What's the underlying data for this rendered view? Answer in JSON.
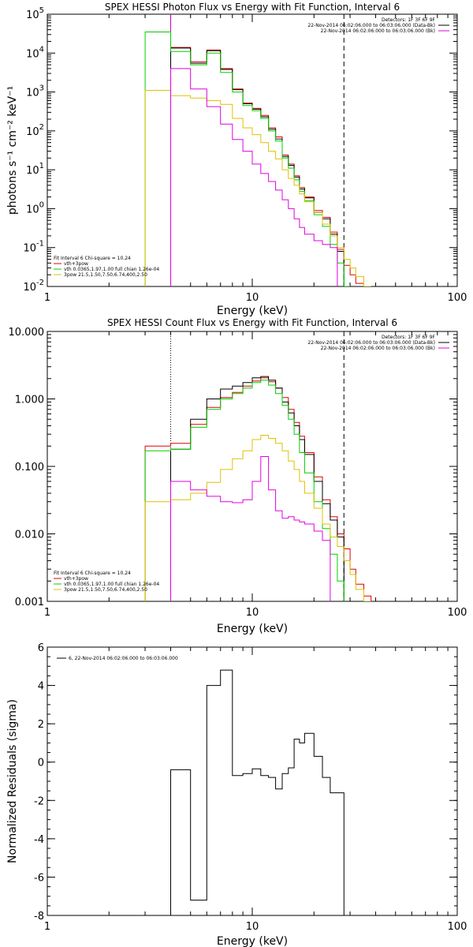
{
  "page": {
    "background": "#ffffff"
  },
  "chart_data": [
    {
      "type": "line",
      "title": "SPEX HESSI Photon Flux vs Energy with Fit Function, Interval 6",
      "xlabel": "Energy (keV)",
      "ylabel": "photons s⁻¹ cm⁻² keV⁻¹",
      "xscale": "log",
      "yscale": "log",
      "xlim": [
        1,
        100
      ],
      "ylim": [
        0.01,
        100000
      ],
      "x_ticks": [
        {
          "v": 1,
          "label": "1"
        },
        {
          "v": 10,
          "label": "10"
        },
        {
          "v": 100,
          "label": "100"
        }
      ],
      "y_ticks": [
        {
          "v": 0.01,
          "base": "10",
          "exp": "-2"
        },
        {
          "v": 0.1,
          "base": "10",
          "exp": "-1"
        },
        {
          "v": 1,
          "base": "10",
          "exp": "0"
        },
        {
          "v": 10,
          "base": "10",
          "exp": "1"
        },
        {
          "v": 100,
          "base": "10",
          "exp": "2"
        },
        {
          "v": 1000,
          "base": "10",
          "exp": "3"
        },
        {
          "v": 10000,
          "base": "10",
          "exp": "4"
        },
        {
          "v": 100000,
          "base": "10",
          "exp": "5"
        }
      ],
      "edges": [
        3,
        4,
        5,
        6,
        7,
        8,
        9,
        10,
        11,
        12,
        13,
        14,
        15,
        16,
        17,
        18,
        20,
        22,
        24,
        26,
        28,
        30,
        32,
        35,
        38
      ],
      "series": [
        {
          "name": "vth+3pow",
          "color": "#e00000",
          "values": [
            null,
            14000,
            6000,
            12000,
            4000,
            1200,
            520,
            380,
            250,
            120,
            70,
            24,
            14,
            7,
            3.5,
            2,
            0.9,
            0.6,
            0.25,
            0.09,
            0.035,
            0.02,
            0.012,
            0.008
          ]
        },
        {
          "name": "",
          "color": "#000000",
          "values": [
            null,
            13500,
            5500,
            11500,
            3800,
            1150,
            500,
            360,
            230,
            110,
            62,
            22,
            13,
            6.5,
            3.2,
            1.9,
            0.8,
            0.55,
            0.22,
            0.08,
            null,
            null,
            null,
            null
          ]
        },
        {
          "name": "vth 0.0365,1.97,1.00 full chian 1.26e-04",
          "color": "#00d000",
          "values": [
            35000,
            11000,
            5000,
            10000,
            3200,
            1000,
            450,
            330,
            210,
            100,
            55,
            20,
            11,
            5.5,
            2.8,
            1.6,
            0.7,
            0.35,
            0.12,
            0.04,
            0.01,
            null,
            null,
            null
          ]
        },
        {
          "name": "3pow 21.5,1.50,7.50,6.74,400,2.50",
          "color": "#e0c000",
          "values": [
            1100,
            800,
            700,
            600,
            480,
            210,
            120,
            80,
            50,
            30,
            19,
            10,
            6,
            4,
            2.4,
            1.5,
            0.8,
            0.4,
            0.2,
            0.1,
            0.05,
            0.03,
            0.018,
            0.01
          ]
        },
        {
          "name": "22-Nov-2014 06:02:06.000 to 06:03:06.000 (Bk)",
          "color": "#e000e0",
          "values": [
            null,
            4000,
            1200,
            420,
            150,
            60,
            30,
            14,
            8,
            5,
            3,
            1.7,
            1,
            0.55,
            0.33,
            0.22,
            0.15,
            0.12,
            0.1,
            null,
            null,
            null,
            null,
            null
          ]
        }
      ],
      "vlines": [
        {
          "x": 4,
          "style": "solid",
          "color": "#c000c0"
        },
        {
          "x": 28,
          "style": "dashed",
          "color": "#000000"
        }
      ],
      "legend_tr": [
        {
          "text": "Detectors: 1F 3F 6F 9F",
          "color": ""
        },
        {
          "text": "22-Nov-2014 06:02:06.000 to 06:03:06.000 (Data-Bk)",
          "color": "#000000"
        },
        {
          "text": "22-Nov-2014 06:02:06.000 to 06:03:06.000 (Bk)",
          "color": "#e000e0"
        }
      ],
      "legend_bl_header": "Fit Interval 6   Chi-square = 10.24",
      "legend_bl": [
        {
          "text": "vth+3pow",
          "color": "#e00000"
        },
        {
          "text": "vth 0.0365,1.97,1.00 full chian 1.26e-04",
          "color": "#00d000"
        },
        {
          "text": "3pow 21.5,1.50,7.50,6.74,400,2.50",
          "color": "#e0c000"
        }
      ]
    },
    {
      "type": "line",
      "title": "SPEX HESSI Count Flux vs Energy with Fit Function, Interval 6",
      "xlabel": "Energy (keV)",
      "ylabel": "",
      "xscale": "log",
      "yscale": "log",
      "xlim": [
        1,
        100
      ],
      "ylim": [
        0.001,
        10
      ],
      "x_ticks": [
        {
          "v": 1,
          "label": "1"
        },
        {
          "v": 10,
          "label": "10"
        },
        {
          "v": 100,
          "label": "100"
        }
      ],
      "y_ticks": [
        {
          "v": 0.001,
          "label": "0.001"
        },
        {
          "v": 0.01,
          "label": "0.010"
        },
        {
          "v": 0.1,
          "label": "0.100"
        },
        {
          "v": 1,
          "label": "1.000"
        },
        {
          "v": 10,
          "label": "10.000"
        }
      ],
      "edges": [
        3,
        4,
        5,
        6,
        7,
        8,
        9,
        10,
        11,
        12,
        13,
        14,
        15,
        16,
        17,
        18,
        20,
        22,
        24,
        26,
        28,
        30,
        32,
        35,
        38
      ],
      "series": [
        {
          "name": "vth+3pow",
          "color": "#e00000",
          "values": [
            0.2,
            0.22,
            0.42,
            0.75,
            1.05,
            1.25,
            1.55,
            1.85,
            2.05,
            1.8,
            1.45,
            1.05,
            0.7,
            0.45,
            0.28,
            0.16,
            0.07,
            0.032,
            0.018,
            0.01,
            0.006,
            0.003,
            0.0018,
            0.0012
          ]
        },
        {
          "name": "",
          "color": "#000000",
          "values": [
            null,
            0.18,
            0.5,
            1,
            1.4,
            1.55,
            1.75,
            2.05,
            2.15,
            1.9,
            1.45,
            0.9,
            0.62,
            0.4,
            0.25,
            0.15,
            0.06,
            0.028,
            0.016,
            0.009,
            null,
            null,
            null,
            null
          ]
        },
        {
          "name": "vth 0.0365,1.97,1.00 full chian 1.26e-04",
          "color": "#00d000",
          "values": [
            0.17,
            0.18,
            0.38,
            0.7,
            1,
            1.2,
            1.45,
            1.75,
            1.9,
            1.6,
            1.2,
            0.8,
            0.5,
            0.3,
            0.16,
            0.08,
            0.03,
            0.012,
            0.005,
            0.002,
            null,
            null,
            null,
            null
          ]
        },
        {
          "name": "3pow 21.5,1.50,7.50,6.74,400,2.50",
          "color": "#e0c000",
          "values": [
            0.03,
            0.032,
            0.04,
            0.058,
            0.09,
            0.13,
            0.17,
            0.25,
            0.29,
            0.26,
            0.22,
            0.17,
            0.12,
            0.09,
            0.06,
            0.04,
            0.024,
            0.014,
            0.009,
            0.0065,
            0.004,
            0.0025,
            0.0015,
            0.001
          ]
        },
        {
          "name": "22-Nov-2014 06:02:06.000 to 06:03:06.000 (Bk)",
          "color": "#e000e0",
          "values": [
            null,
            0.06,
            0.045,
            0.036,
            0.03,
            0.029,
            0.032,
            0.06,
            0.14,
            0.045,
            0.022,
            0.017,
            0.018,
            0.016,
            0.015,
            0.014,
            0.011,
            0.008,
            null,
            null,
            null,
            null,
            null,
            null
          ]
        }
      ],
      "vlines": [
        {
          "x": 4,
          "style": "dotted",
          "color": "#000000"
        },
        {
          "x": 28,
          "style": "dashed",
          "color": "#000000"
        }
      ],
      "legend_tr": [
        {
          "text": "Detectors: 1F 3F 6F 9F",
          "color": ""
        },
        {
          "text": "22-Nov-2014 06:02:06.000 to 06:03:06.000 (Data-Bk)",
          "color": "#000000"
        },
        {
          "text": "22-Nov-2014 06:02:06.000 to 06:03:06.000 (Bk)",
          "color": "#e000e0"
        }
      ],
      "legend_bl_header": "Fit Interval 6   Chi-square = 10.24",
      "legend_bl": [
        {
          "text": "vth+3pow",
          "color": "#e00000"
        },
        {
          "text": "vth 0.0365,1.97,1.00 full chian 1.26e-04",
          "color": "#00d000"
        },
        {
          "text": "3pow 21.5,1.50,7.50,6.74,400,2.50",
          "color": "#e0c000"
        }
      ]
    },
    {
      "type": "line",
      "title": "",
      "xlabel": "Energy (keV)",
      "ylabel": "Normalized Residuals (sigma)",
      "xscale": "log",
      "yscale": "linear",
      "xlim": [
        1,
        100
      ],
      "ylim": [
        -8,
        6
      ],
      "x_ticks": [
        {
          "v": 1,
          "label": "1"
        },
        {
          "v": 10,
          "label": "10"
        },
        {
          "v": 100,
          "label": "100"
        }
      ],
      "y_ticks": [
        {
          "v": -8,
          "label": "-8"
        },
        {
          "v": -6,
          "label": "-6"
        },
        {
          "v": -4,
          "label": "-4"
        },
        {
          "v": -2,
          "label": "-2"
        },
        {
          "v": 0,
          "label": "0"
        },
        {
          "v": 2,
          "label": "2"
        },
        {
          "v": 4,
          "label": "4"
        },
        {
          "v": 6,
          "label": "6"
        }
      ],
      "edges": [
        4,
        5,
        6,
        7,
        8,
        9,
        10,
        11,
        12,
        13,
        14,
        15,
        16,
        17,
        18,
        20,
        22,
        24,
        26,
        28
      ],
      "series": [
        {
          "name": "6, 22-Nov-2014 06:02:06.000 to 06:03:06.000",
          "color": "#000000",
          "values": [
            -0.4,
            -7.2,
            4,
            4.8,
            -0.7,
            -0.6,
            -0.35,
            -0.7,
            -0.8,
            -1.4,
            -0.6,
            -0.3,
            1.2,
            1,
            1.5,
            0.3,
            -0.8,
            -1.6,
            -1.6
          ]
        }
      ],
      "vlines": [],
      "legend_tr": [],
      "legend_bl_header": "",
      "legend_bl": [],
      "legend_tl": [
        {
          "text": "6, 22-Nov-2014 06:02:06.000 to 06:03:06.000",
          "color": "#000000"
        }
      ]
    }
  ]
}
